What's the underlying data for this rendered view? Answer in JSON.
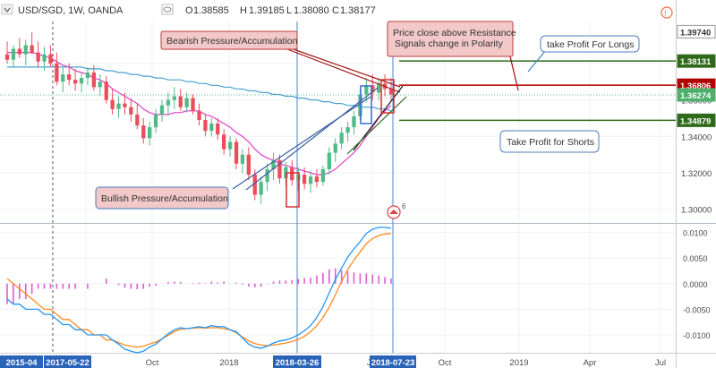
{
  "header": {
    "symbol": "USD/SGD, 1W, OANDA",
    "ohlc": [
      {
        "key": "O",
        "value": "1.38585"
      },
      {
        "key": "H",
        "value": "1.39185"
      },
      {
        "key": "L",
        "value": "1.38080"
      },
      {
        "key": "C",
        "value": "1.38177"
      }
    ]
  },
  "colors": {
    "up": "#53b987",
    "down": "#eb4d5c",
    "ma_fast": "#e040c8",
    "ma_slow": "#4aa0d0",
    "resistance": "#b00000",
    "support": "#2f6a1a",
    "macd": "#2196f3",
    "signal": "#ff8a1f",
    "hist": "#e05bd0",
    "annotation_border": "#c23b3b",
    "annotation_bg": "#f2c8c8",
    "callout_border": "#4a7fc0",
    "axis_tag": "#2a64b8"
  },
  "annotations": {
    "bearish": "Bearish Pressure/Accumulation",
    "bullish": "Bullish Pressure/Accumulation",
    "polarity": [
      "Price close above Resistance",
      "Signals change in Polarity"
    ],
    "tp_longs": "take Profit For Longs",
    "tp_shorts": "Take Profit for Shorts"
  },
  "event_marker": "6",
  "chart_data": {
    "type": "candlestick",
    "title": "USD/SGD, 1W, OANDA",
    "x_axis": {
      "ticks": [
        "Jul",
        "Oct",
        "2018",
        "Jul",
        "Oct",
        "2019",
        "Apr",
        "Jul"
      ],
      "highlighted": [
        "2015-04",
        "2017-05-22",
        "2018-03-26",
        "2018-07-23"
      ]
    },
    "price_axis": {
      "ticks": [
        1.3,
        1.32,
        1.34,
        1.36,
        1.38
      ],
      "labels": [
        "1.30000",
        "1.32000",
        "1.34000",
        "1.36000",
        "1.38000"
      ],
      "ylim": [
        1.293,
        1.403
      ]
    },
    "price_tags": [
      {
        "value": 1.3974,
        "label": "1.39740",
        "kind": "neutral"
      },
      {
        "value": 1.38131,
        "label": "1.38131",
        "kind": "support"
      },
      {
        "value": 1.36806,
        "label": "1.36806",
        "kind": "resistance"
      },
      {
        "value": 1.36274,
        "label": "1.36274",
        "kind": "current"
      },
      {
        "value": 1.34879,
        "label": "1.34879",
        "kind": "support"
      }
    ],
    "levels": [
      {
        "name": "take_profit_longs",
        "value": 1.38131
      },
      {
        "name": "resistance",
        "value": 1.36806
      },
      {
        "name": "take_profit_shorts",
        "value": 1.34879
      }
    ],
    "candles": [
      {
        "o": 1.385,
        "h": 1.392,
        "l": 1.38,
        "c": 1.382
      },
      {
        "o": 1.382,
        "h": 1.39,
        "l": 1.378,
        "c": 1.388
      },
      {
        "o": 1.388,
        "h": 1.394,
        "l": 1.383,
        "c": 1.385
      },
      {
        "o": 1.385,
        "h": 1.393,
        "l": 1.379,
        "c": 1.39
      },
      {
        "o": 1.39,
        "h": 1.397,
        "l": 1.385,
        "c": 1.386
      },
      {
        "o": 1.386,
        "h": 1.392,
        "l": 1.378,
        "c": 1.381
      },
      {
        "o": 1.381,
        "h": 1.389,
        "l": 1.376,
        "c": 1.385
      },
      {
        "o": 1.385,
        "h": 1.39,
        "l": 1.378,
        "c": 1.38
      },
      {
        "o": 1.38,
        "h": 1.386,
        "l": 1.368,
        "c": 1.37
      },
      {
        "o": 1.37,
        "h": 1.378,
        "l": 1.364,
        "c": 1.374
      },
      {
        "o": 1.374,
        "h": 1.38,
        "l": 1.368,
        "c": 1.371
      },
      {
        "o": 1.371,
        "h": 1.377,
        "l": 1.365,
        "c": 1.369
      },
      {
        "o": 1.369,
        "h": 1.375,
        "l": 1.364,
        "c": 1.372
      },
      {
        "o": 1.372,
        "h": 1.378,
        "l": 1.368,
        "c": 1.375
      },
      {
        "o": 1.375,
        "h": 1.379,
        "l": 1.365,
        "c": 1.367
      },
      {
        "o": 1.367,
        "h": 1.374,
        "l": 1.362,
        "c": 1.37
      },
      {
        "o": 1.37,
        "h": 1.373,
        "l": 1.358,
        "c": 1.36
      },
      {
        "o": 1.36,
        "h": 1.366,
        "l": 1.352,
        "c": 1.355
      },
      {
        "o": 1.355,
        "h": 1.362,
        "l": 1.35,
        "c": 1.358
      },
      {
        "o": 1.358,
        "h": 1.364,
        "l": 1.352,
        "c": 1.356
      },
      {
        "o": 1.356,
        "h": 1.361,
        "l": 1.348,
        "c": 1.352
      },
      {
        "o": 1.352,
        "h": 1.358,
        "l": 1.344,
        "c": 1.346
      },
      {
        "o": 1.346,
        "h": 1.35,
        "l": 1.336,
        "c": 1.339
      },
      {
        "o": 1.339,
        "h": 1.348,
        "l": 1.335,
        "c": 1.345
      },
      {
        "o": 1.345,
        "h": 1.355,
        "l": 1.342,
        "c": 1.352
      },
      {
        "o": 1.352,
        "h": 1.36,
        "l": 1.348,
        "c": 1.357
      },
      {
        "o": 1.357,
        "h": 1.364,
        "l": 1.352,
        "c": 1.36
      },
      {
        "o": 1.36,
        "h": 1.367,
        "l": 1.355,
        "c": 1.362
      },
      {
        "o": 1.362,
        "h": 1.366,
        "l": 1.354,
        "c": 1.356
      },
      {
        "o": 1.356,
        "h": 1.364,
        "l": 1.353,
        "c": 1.361
      },
      {
        "o": 1.361,
        "h": 1.363,
        "l": 1.352,
        "c": 1.354
      },
      {
        "o": 1.354,
        "h": 1.358,
        "l": 1.346,
        "c": 1.349
      },
      {
        "o": 1.349,
        "h": 1.352,
        "l": 1.34,
        "c": 1.343
      },
      {
        "o": 1.343,
        "h": 1.35,
        "l": 1.34,
        "c": 1.347
      },
      {
        "o": 1.347,
        "h": 1.35,
        "l": 1.338,
        "c": 1.341
      },
      {
        "o": 1.341,
        "h": 1.344,
        "l": 1.33,
        "c": 1.333
      },
      {
        "o": 1.333,
        "h": 1.34,
        "l": 1.329,
        "c": 1.337
      },
      {
        "o": 1.337,
        "h": 1.339,
        "l": 1.322,
        "c": 1.325
      },
      {
        "o": 1.325,
        "h": 1.333,
        "l": 1.32,
        "c": 1.33
      },
      {
        "o": 1.33,
        "h": 1.334,
        "l": 1.316,
        "c": 1.319
      },
      {
        "o": 1.319,
        "h": 1.322,
        "l": 1.305,
        "c": 1.308
      },
      {
        "o": 1.308,
        "h": 1.318,
        "l": 1.303,
        "c": 1.315
      },
      {
        "o": 1.315,
        "h": 1.325,
        "l": 1.31,
        "c": 1.322
      },
      {
        "o": 1.322,
        "h": 1.331,
        "l": 1.316,
        "c": 1.327
      },
      {
        "o": 1.327,
        "h": 1.33,
        "l": 1.314,
        "c": 1.317
      },
      {
        "o": 1.317,
        "h": 1.326,
        "l": 1.313,
        "c": 1.323
      },
      {
        "o": 1.323,
        "h": 1.327,
        "l": 1.313,
        "c": 1.316
      },
      {
        "o": 1.316,
        "h": 1.323,
        "l": 1.31,
        "c": 1.319
      },
      {
        "o": 1.319,
        "h": 1.323,
        "l": 1.311,
        "c": 1.314
      },
      {
        "o": 1.314,
        "h": 1.321,
        "l": 1.309,
        "c": 1.318
      },
      {
        "o": 1.318,
        "h": 1.322,
        "l": 1.312,
        "c": 1.315
      },
      {
        "o": 1.315,
        "h": 1.324,
        "l": 1.313,
        "c": 1.322
      },
      {
        "o": 1.322,
        "h": 1.334,
        "l": 1.319,
        "c": 1.331
      },
      {
        "o": 1.331,
        "h": 1.339,
        "l": 1.326,
        "c": 1.336
      },
      {
        "o": 1.336,
        "h": 1.345,
        "l": 1.333,
        "c": 1.342
      },
      {
        "o": 1.342,
        "h": 1.348,
        "l": 1.337,
        "c": 1.345
      },
      {
        "o": 1.345,
        "h": 1.354,
        "l": 1.341,
        "c": 1.351
      },
      {
        "o": 1.351,
        "h": 1.366,
        "l": 1.349,
        "c": 1.363
      },
      {
        "o": 1.363,
        "h": 1.372,
        "l": 1.359,
        "c": 1.368
      },
      {
        "o": 1.368,
        "h": 1.374,
        "l": 1.36,
        "c": 1.364
      },
      {
        "o": 1.364,
        "h": 1.372,
        "l": 1.36,
        "c": 1.369
      },
      {
        "o": 1.369,
        "h": 1.374,
        "l": 1.362,
        "c": 1.366
      },
      {
        "o": 1.366,
        "h": 1.372,
        "l": 1.359,
        "c": 1.363
      }
    ],
    "ma_fast": [
      1.386,
      1.386,
      1.386,
      1.386,
      1.386,
      1.385,
      1.384,
      1.383,
      1.381,
      1.379,
      1.378,
      1.376,
      1.375,
      1.374,
      1.372,
      1.371,
      1.369,
      1.366,
      1.364,
      1.362,
      1.36,
      1.358,
      1.355,
      1.353,
      1.352,
      1.352,
      1.352,
      1.353,
      1.353,
      1.354,
      1.354,
      1.354,
      1.352,
      1.351,
      1.349,
      1.347,
      1.345,
      1.342,
      1.34,
      1.337,
      1.333,
      1.33,
      1.328,
      1.327,
      1.325,
      1.324,
      1.323,
      1.322,
      1.321,
      1.32,
      1.319,
      1.319,
      1.32,
      1.322,
      1.325,
      1.328,
      1.331,
      1.335,
      1.34,
      1.345,
      1.35,
      1.354,
      1.357
    ],
    "ma_slow": [
      1.378,
      1.378,
      1.378,
      1.378,
      1.378,
      1.378,
      1.378,
      1.378,
      1.378,
      1.378,
      1.378,
      1.378,
      1.378,
      1.377,
      1.377,
      1.377,
      1.376,
      1.376,
      1.375,
      1.375,
      1.374,
      1.374,
      1.373,
      1.373,
      1.372,
      1.372,
      1.371,
      1.371,
      1.371,
      1.37,
      1.37,
      1.369,
      1.369,
      1.368,
      1.368,
      1.367,
      1.367,
      1.366,
      1.366,
      1.365,
      1.365,
      1.364,
      1.364,
      1.363,
      1.363,
      1.362,
      1.362,
      1.361,
      1.361,
      1.36,
      1.36,
      1.359,
      1.359,
      1.358,
      1.358,
      1.357,
      1.357,
      1.356,
      1.356,
      1.356,
      1.355,
      1.355,
      1.354
    ],
    "macd_axis": {
      "ticks": [
        0.01,
        0.005,
        0.0,
        -0.005,
        -0.01
      ],
      "labels": [
        "0.0100",
        "0.0050",
        "0.0000",
        "-0.0050",
        "-0.0100"
      ],
      "ylim": [
        -0.0135,
        0.0115
      ]
    },
    "macd": [
      -0.003,
      -0.004,
      -0.004,
      -0.005,
      -0.005,
      -0.005,
      -0.006,
      -0.006,
      -0.007,
      -0.008,
      -0.008,
      -0.009,
      -0.009,
      -0.01,
      -0.01,
      -0.01,
      -0.01,
      -0.011,
      -0.0118,
      -0.0128,
      -0.0132,
      -0.0135,
      -0.0132,
      -0.0124,
      -0.0118,
      -0.0108,
      -0.0098,
      -0.009,
      -0.0086,
      -0.0088,
      -0.0086,
      -0.0084,
      -0.0086,
      -0.0082,
      -0.0084,
      -0.0084,
      -0.009,
      -0.0094,
      -0.0106,
      -0.0118,
      -0.0124,
      -0.0126,
      -0.0122,
      -0.0116,
      -0.0112,
      -0.011,
      -0.0106,
      -0.01,
      -0.0092,
      -0.0082,
      -0.0066,
      -0.0045,
      -0.0018,
      0.0008,
      0.003,
      0.0052,
      0.0068,
      0.0082,
      0.0098,
      0.0106,
      0.011,
      0.011,
      0.0108
    ],
    "signal": [
      0.001,
      0.0,
      -0.001,
      -0.002,
      -0.003,
      -0.004,
      -0.005,
      -0.005,
      -0.006,
      -0.007,
      -0.007,
      -0.008,
      -0.009,
      -0.009,
      -0.01,
      -0.01,
      -0.011,
      -0.011,
      -0.0115,
      -0.012,
      -0.0122,
      -0.0124,
      -0.0122,
      -0.0118,
      -0.0114,
      -0.0108,
      -0.0101,
      -0.0094,
      -0.0089,
      -0.0088,
      -0.0087,
      -0.0086,
      -0.0087,
      -0.0086,
      -0.0086,
      -0.0088,
      -0.009,
      -0.0096,
      -0.0104,
      -0.0112,
      -0.0117,
      -0.012,
      -0.0121,
      -0.012,
      -0.0118,
      -0.0116,
      -0.0113,
      -0.0109,
      -0.0103,
      -0.0094,
      -0.0082,
      -0.0066,
      -0.0046,
      -0.0022,
      0.0004,
      0.0028,
      0.0046,
      0.0062,
      0.0078,
      0.0088,
      0.0094,
      0.0097,
      0.0098
    ]
  }
}
